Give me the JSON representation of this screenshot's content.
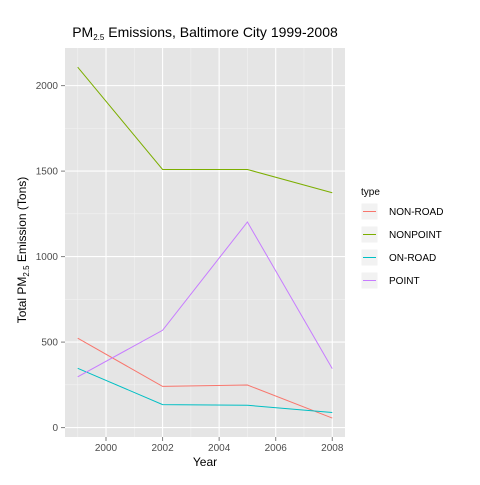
{
  "chart_data": {
    "type": "line",
    "title_prefix": "PM",
    "title_subscript": "2.5",
    "title_suffix": " Emissions, Baltimore City 1999-2008",
    "xlabel": "Year",
    "ylabel_prefix": "Total PM",
    "ylabel_subscript": "2.5",
    "ylabel_suffix": " Emission (Tons)",
    "x": [
      1999,
      2002,
      2005,
      2008
    ],
    "xlim": [
      1998.55,
      2008.45
    ],
    "ylim": [
      -55,
      2220
    ],
    "x_ticks": [
      2000,
      2002,
      2004,
      2006,
      2008
    ],
    "x_minor_ticks": [
      1999,
      2001,
      2003,
      2005,
      2007
    ],
    "y_ticks": [
      0,
      500,
      1000,
      1500,
      2000
    ],
    "y_minor_ticks": [
      250,
      750,
      1250,
      1750
    ],
    "grid": true,
    "legend_title": "type",
    "legend_position": "right",
    "series": [
      {
        "name": "NON-ROAD",
        "color": "#F8766D",
        "values": [
          522.94,
          240.85,
          248.93,
          55.82
        ]
      },
      {
        "name": "NONPOINT",
        "color": "#7CAE00",
        "values": [
          2107.63,
          1509.5,
          1509.5,
          1373.21
        ]
      },
      {
        "name": "ON-ROAD",
        "color": "#00BFC4",
        "values": [
          346.82,
          134.31,
          130.43,
          88.28
        ]
      },
      {
        "name": "POINT",
        "color": "#C77CFF",
        "values": [
          296.8,
          569.26,
          1202.49,
          344.98
        ]
      }
    ],
    "colors": {
      "panel_background": "#E5E5E5",
      "grid_major": "#FFFFFF",
      "grid_minor": "#F2F2F2",
      "legend_key_background": "#F2F2F2"
    }
  }
}
